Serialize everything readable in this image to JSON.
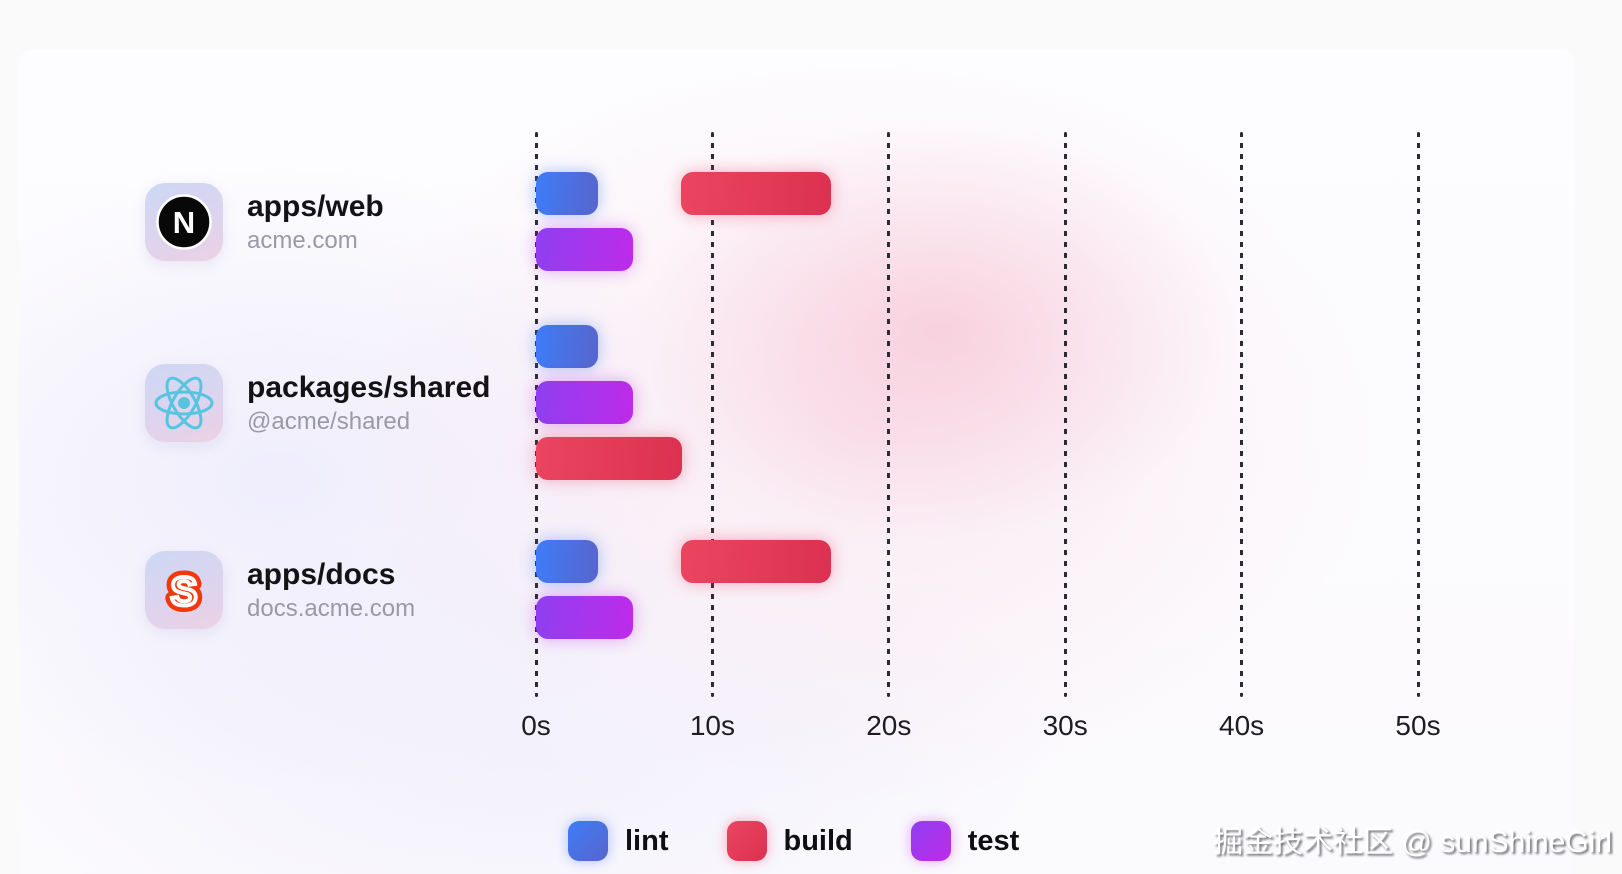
{
  "watermark": {
    "text": "掘金技术社区 @ sunShineGirl"
  },
  "chart_data": {
    "type": "gantt",
    "unit": "seconds",
    "x_axis": {
      "tick_values": [
        0,
        10,
        20,
        30,
        40,
        50
      ],
      "tick_labels": [
        "0s",
        "10s",
        "20s",
        "30s",
        "40s",
        "50s"
      ],
      "range": [
        0,
        52
      ],
      "gridlines": "dashed-vertical"
    },
    "series_colors": {
      "lint": {
        "from": "#3E7CF8",
        "to": "#5865CC",
        "glow": "rgba(80,125,245,0.45)"
      },
      "build": {
        "from": "#EA4560",
        "to": "#DC3150",
        "glow": "rgba(236,70,110,0.42)"
      },
      "test": {
        "from": "#8F3FF0",
        "to": "#BE2BE9",
        "glow": "rgba(190,45,230,0.40)"
      }
    },
    "projects": [
      {
        "name": "apps/web",
        "domain": "acme.com",
        "icon": "nextjs-icon",
        "tasks": [
          {
            "task": "lint",
            "start": 0,
            "end": 3.5,
            "lane": 0
          },
          {
            "task": "build",
            "start": 8.2,
            "end": 16.7,
            "lane": 0
          },
          {
            "task": "test",
            "start": 0,
            "end": 5.5,
            "lane": 1
          }
        ]
      },
      {
        "name": "packages/shared",
        "domain": "@acme/shared",
        "icon": "react-icon",
        "tasks": [
          {
            "task": "lint",
            "start": 0,
            "end": 3.5,
            "lane": 0
          },
          {
            "task": "test",
            "start": 0,
            "end": 5.5,
            "lane": 1
          },
          {
            "task": "build",
            "start": 0,
            "end": 8.3,
            "lane": 2
          }
        ]
      },
      {
        "name": "apps/docs",
        "domain": "docs.acme.com",
        "icon": "svelte-icon",
        "tasks": [
          {
            "task": "lint",
            "start": 0,
            "end": 3.5,
            "lane": 0
          },
          {
            "task": "build",
            "start": 8.2,
            "end": 16.7,
            "lane": 0
          },
          {
            "task": "test",
            "start": 0,
            "end": 5.5,
            "lane": 1
          }
        ]
      }
    ],
    "legend": {
      "position": "bottom",
      "items": [
        {
          "label": "lint",
          "series": "lint"
        },
        {
          "label": "build",
          "series": "build"
        },
        {
          "label": "test",
          "series": "test"
        }
      ]
    }
  }
}
